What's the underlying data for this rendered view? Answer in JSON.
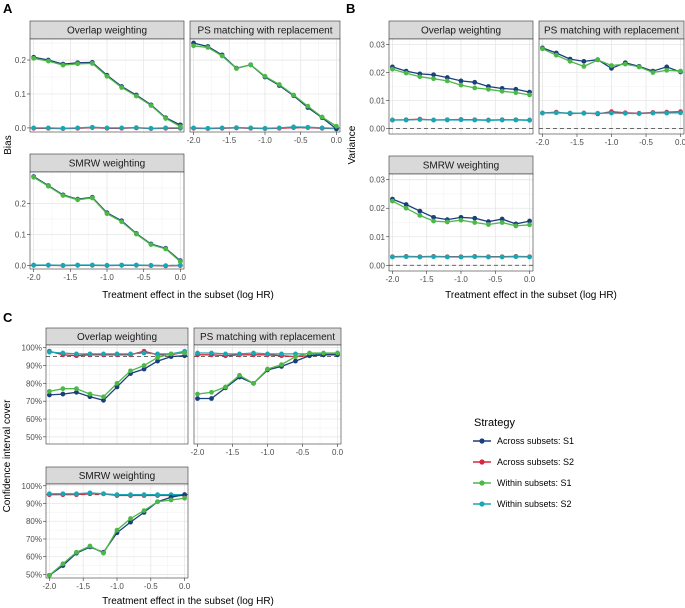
{
  "figure": {
    "panel_letters": [
      "A",
      "B",
      "C"
    ],
    "xlabel": "Treatment effect in the subset (log HR)",
    "legend": {
      "title": "Strategy",
      "entries": [
        {
          "name": "Across subsets: S1",
          "color": "#1a3f7a"
        },
        {
          "name": "Across subsets: S2",
          "color": "#d7263d"
        },
        {
          "name": "Within subsets: S1",
          "color": "#4cb848"
        },
        {
          "name": "Within subsets: S2",
          "color": "#1aa7b3"
        }
      ]
    }
  },
  "chart_data": [
    {
      "type": "line",
      "group": "A",
      "title": "Overlap weighting",
      "ylabel": "Bias",
      "x": [
        -2.0,
        -1.8,
        -1.6,
        -1.4,
        -1.2,
        -1.0,
        -0.8,
        -0.6,
        -0.4,
        -0.2,
        0.0
      ],
      "xlim": [
        -2.05,
        0.05
      ],
      "ylim": [
        -0.012,
        0.262
      ],
      "yticks": [
        0.0,
        0.1,
        0.2
      ],
      "ytick_labels": [
        "0.0",
        "0.1",
        "0.2"
      ],
      "xticks": [],
      "xtick_labels": [],
      "refline": 0,
      "series": [
        {
          "name": "Across subsets: S1",
          "values": [
            0.208,
            0.2,
            0.188,
            0.192,
            0.193,
            0.155,
            0.122,
            0.097,
            0.068,
            0.03,
            0.009
          ]
        },
        {
          "name": "Across subsets: S2",
          "values": [
            -0.001,
            -0.001,
            -0.002,
            -0.001,
            0.001,
            -0.001,
            -0.001,
            0.0,
            -0.002,
            -0.001,
            -0.001
          ]
        },
        {
          "name": "Within subsets: S1",
          "values": [
            0.205,
            0.197,
            0.185,
            0.189,
            0.19,
            0.152,
            0.119,
            0.094,
            0.066,
            0.028,
            0.004
          ]
        },
        {
          "name": "Within subsets: S2",
          "values": [
            0.0,
            0.0,
            -0.001,
            0.0,
            0.002,
            0.0,
            0.0,
            0.001,
            -0.001,
            0.0,
            0.0
          ]
        }
      ]
    },
    {
      "type": "line",
      "group": "A",
      "title": "PS matching with replacement",
      "ylabel": "",
      "x": [
        -2.0,
        -1.8,
        -1.6,
        -1.4,
        -1.2,
        -1.0,
        -0.8,
        -0.6,
        -0.4,
        -0.2,
        0.0
      ],
      "xlim": [
        -2.05,
        0.05
      ],
      "ylim": [
        -0.012,
        0.262
      ],
      "yticks": [],
      "ytick_labels": [],
      "xticks": [
        -2.0,
        -1.5,
        -1.0,
        -0.5,
        0.0
      ],
      "xtick_labels": [
        "-2.0",
        "-1.5",
        "-1.0",
        "-0.5",
        "0.0"
      ],
      "refline": 0,
      "series": [
        {
          "name": "Across subsets: S1",
          "values": [
            0.25,
            0.24,
            0.215,
            0.176,
            0.186,
            0.15,
            0.125,
            0.095,
            0.06,
            0.03,
            -0.003
          ]
        },
        {
          "name": "Across subsets: S2",
          "values": [
            -0.001,
            -0.002,
            -0.001,
            0.0,
            -0.001,
            -0.002,
            -0.001,
            0.001,
            0.001,
            -0.001,
            -0.002
          ]
        },
        {
          "name": "Within subsets: S1",
          "values": [
            0.242,
            0.237,
            0.212,
            0.175,
            0.186,
            0.152,
            0.128,
            0.097,
            0.064,
            0.032,
            0.005
          ]
        },
        {
          "name": "Within subsets: S2",
          "values": [
            0.0,
            -0.001,
            0.0,
            0.001,
            0.0,
            -0.001,
            0.0,
            0.003,
            0.002,
            0.0,
            -0.001
          ]
        }
      ]
    },
    {
      "type": "line",
      "group": "A",
      "title": "SMRW weighting",
      "ylabel": "Bias",
      "x": [
        -2.0,
        -1.8,
        -1.6,
        -1.4,
        -1.2,
        -1.0,
        -0.8,
        -0.6,
        -0.4,
        -0.2,
        0.0
      ],
      "xlim": [
        -2.05,
        0.05
      ],
      "ylim": [
        -0.012,
        0.302
      ],
      "yticks": [
        0.0,
        0.1,
        0.2
      ],
      "ytick_labels": [
        "0.0",
        "0.1",
        "0.2"
      ],
      "xticks": [
        -2.0,
        -1.5,
        -1.0,
        -0.5,
        0.0
      ],
      "xtick_labels": [
        "-2.0",
        "-1.5",
        "-1.0",
        "-0.5",
        "0.0"
      ],
      "refline": 0,
      "series": [
        {
          "name": "Across subsets: S1",
          "values": [
            0.287,
            0.258,
            0.228,
            0.214,
            0.22,
            0.17,
            0.144,
            0.103,
            0.069,
            0.055,
            0.015
          ]
        },
        {
          "name": "Across subsets: S2",
          "values": [
            0.0,
            0.0,
            -0.001,
            0.0,
            0.0,
            -0.001,
            0.0,
            0.0,
            -0.001,
            -0.002,
            -0.001
          ]
        },
        {
          "name": "Within subsets: S1",
          "values": [
            0.285,
            0.256,
            0.226,
            0.212,
            0.218,
            0.167,
            0.141,
            0.101,
            0.067,
            0.053,
            0.012
          ]
        },
        {
          "name": "Within subsets: S2",
          "values": [
            0.001,
            0.001,
            0.0,
            0.001,
            0.001,
            0.0,
            0.001,
            0.001,
            0.0,
            -0.001,
            0.0
          ]
        }
      ]
    },
    {
      "type": "line",
      "group": "B",
      "title": "Overlap weighting",
      "ylabel": "Variance",
      "x": [
        -2.0,
        -1.8,
        -1.6,
        -1.4,
        -1.2,
        -1.0,
        -0.8,
        -0.6,
        -0.4,
        -0.2,
        0.0
      ],
      "xlim": [
        -2.05,
        0.05
      ],
      "ylim": [
        -0.002,
        0.032
      ],
      "yticks": [
        0.0,
        0.01,
        0.02,
        0.03
      ],
      "ytick_labels": [
        "0.00",
        "0.01",
        "0.02",
        "0.03"
      ],
      "xticks": [],
      "xtick_labels": [],
      "refline": 0,
      "series": [
        {
          "name": "Across subsets: S1",
          "values": [
            0.022,
            0.0205,
            0.0195,
            0.0192,
            0.0182,
            0.017,
            0.0165,
            0.015,
            0.0143,
            0.014,
            0.013
          ]
        },
        {
          "name": "Across subsets: S2",
          "values": [
            0.003,
            0.0031,
            0.0033,
            0.003,
            0.0031,
            0.0032,
            0.0031,
            0.003,
            0.0031,
            0.0031,
            0.003
          ]
        },
        {
          "name": "Within subsets: S1",
          "values": [
            0.0212,
            0.0198,
            0.0185,
            0.0178,
            0.017,
            0.0155,
            0.0145,
            0.014,
            0.0133,
            0.0128,
            0.012
          ]
        },
        {
          "name": "Within subsets: S2",
          "values": [
            0.003,
            0.003,
            0.0032,
            0.003,
            0.003,
            0.0031,
            0.003,
            0.0029,
            0.003,
            0.003,
            0.0029
          ]
        }
      ]
    },
    {
      "type": "line",
      "group": "B",
      "title": "PS matching with replacement",
      "ylabel": "",
      "x": [
        -2.0,
        -1.8,
        -1.6,
        -1.4,
        -1.2,
        -1.0,
        -0.8,
        -0.6,
        -0.4,
        -0.2,
        0.0
      ],
      "xlim": [
        -2.05,
        0.05
      ],
      "ylim": [
        -0.002,
        0.032
      ],
      "yticks": [],
      "ytick_labels": [],
      "xticks": [
        -2.0,
        -1.5,
        -1.0,
        -0.5,
        0.0
      ],
      "xtick_labels": [
        "-2.0",
        "-1.5",
        "-1.0",
        "-0.5",
        "0.0"
      ],
      "refline": 0,
      "series": [
        {
          "name": "Across subsets: S1",
          "values": [
            0.0288,
            0.027,
            0.0248,
            0.024,
            0.0246,
            0.0215,
            0.0235,
            0.0222,
            0.0205,
            0.022,
            0.0202
          ]
        },
        {
          "name": "Across subsets: S2",
          "values": [
            0.0055,
            0.0058,
            0.0053,
            0.0055,
            0.0052,
            0.006,
            0.0056,
            0.0054,
            0.0057,
            0.0058,
            0.006
          ]
        },
        {
          "name": "Within subsets: S1",
          "values": [
            0.0285,
            0.0262,
            0.024,
            0.0222,
            0.0245,
            0.0225,
            0.023,
            0.022,
            0.02,
            0.0208,
            0.0205
          ]
        },
        {
          "name": "Within subsets: S2",
          "values": [
            0.0055,
            0.0056,
            0.0055,
            0.0054,
            0.0054,
            0.0055,
            0.0054,
            0.0053,
            0.0055,
            0.0055,
            0.0056
          ]
        }
      ]
    },
    {
      "type": "line",
      "group": "B",
      "title": "SMRW weighting",
      "ylabel": "Variance",
      "x": [
        -2.0,
        -1.8,
        -1.6,
        -1.4,
        -1.2,
        -1.0,
        -0.8,
        -0.6,
        -0.4,
        -0.2,
        0.0
      ],
      "xlim": [
        -2.05,
        0.05
      ],
      "ylim": [
        -0.002,
        0.032
      ],
      "yticks": [
        0.0,
        0.01,
        0.02,
        0.03
      ],
      "ytick_labels": [
        "0.00",
        "0.01",
        "0.02",
        "0.03"
      ],
      "xticks": [
        -2.0,
        -1.5,
        -1.0,
        -0.5,
        0.0
      ],
      "xtick_labels": [
        "-2.0",
        "-1.5",
        "-1.0",
        "-0.5",
        "0.0"
      ],
      "refline": 0,
      "series": [
        {
          "name": "Across subsets: S1",
          "values": [
            0.0232,
            0.0213,
            0.019,
            0.0168,
            0.016,
            0.0168,
            0.0165,
            0.0153,
            0.0162,
            0.0145,
            0.0155
          ]
        },
        {
          "name": "Across subsets: S2",
          "values": [
            0.003,
            0.0031,
            0.003,
            0.0031,
            0.003,
            0.003,
            0.0031,
            0.003,
            0.003,
            0.0031,
            0.003
          ]
        },
        {
          "name": "Within subsets: S1",
          "values": [
            0.0225,
            0.02,
            0.0175,
            0.0155,
            0.0152,
            0.0158,
            0.015,
            0.0143,
            0.015,
            0.0138,
            0.0142
          ]
        },
        {
          "name": "Within subsets: S2",
          "values": [
            0.0029,
            0.003,
            0.0029,
            0.003,
            0.0029,
            0.0029,
            0.003,
            0.0029,
            0.0029,
            0.003,
            0.0029
          ]
        }
      ]
    },
    {
      "type": "line",
      "group": "C",
      "title": "Overlap weighting",
      "ylabel": "Confidence interval cover",
      "x": [
        -2.0,
        -1.8,
        -1.6,
        -1.4,
        -1.2,
        -1.0,
        -0.8,
        -0.6,
        -0.4,
        -0.2,
        0.0
      ],
      "xlim": [
        -2.05,
        0.05
      ],
      "ylim": [
        46,
        101.5
      ],
      "yticks": [
        50,
        60,
        70,
        80,
        90,
        100
      ],
      "ytick_labels": [
        "50%",
        "60%",
        "70%",
        "80%",
        "90%",
        "100%"
      ],
      "xticks": [],
      "xtick_labels": [],
      "refline": 95,
      "series": [
        {
          "name": "Across subsets: S1",
          "values": [
            73.5,
            74.0,
            75.0,
            72.5,
            70.5,
            78.0,
            85.5,
            88.0,
            92.5,
            95.0,
            95.5
          ]
        },
        {
          "name": "Across subsets: S2",
          "values": [
            98.0,
            96.0,
            95.5,
            96.0,
            96.0,
            96.0,
            96.0,
            98.0,
            96.0,
            96.0,
            97.5
          ]
        },
        {
          "name": "Within subsets: S1",
          "values": [
            75.5,
            77.0,
            77.0,
            74.0,
            72.5,
            80.0,
            87.0,
            90.0,
            94.5,
            96.5,
            97.0
          ]
        },
        {
          "name": "Within subsets: S2",
          "values": [
            97.5,
            97.0,
            96.5,
            96.5,
            96.5,
            96.5,
            96.5,
            97.0,
            96.5,
            96.5,
            98.0
          ]
        }
      ]
    },
    {
      "type": "line",
      "group": "C",
      "title": "PS matching with replacement",
      "ylabel": "",
      "x": [
        -2.0,
        -1.8,
        -1.6,
        -1.4,
        -1.2,
        -1.0,
        -0.8,
        -0.6,
        -0.4,
        -0.2,
        0.0
      ],
      "xlim": [
        -2.05,
        0.05
      ],
      "ylim": [
        46,
        101.5
      ],
      "yticks": [],
      "ytick_labels": [],
      "xticks": [
        -2.0,
        -1.5,
        -1.0,
        -0.5,
        0.0
      ],
      "xtick_labels": [
        "-2.0",
        "-1.5",
        "-1.0",
        "-0.5",
        "0.0"
      ],
      "refline": 95,
      "series": [
        {
          "name": "Across subsets: S1",
          "values": [
            71.5,
            71.5,
            77.5,
            83.5,
            80.0,
            87.5,
            89.5,
            92.5,
            95.5,
            96.0,
            96.0
          ]
        },
        {
          "name": "Across subsets: S2",
          "values": [
            96.0,
            96.0,
            95.5,
            96.0,
            96.0,
            96.0,
            95.5,
            95.0,
            95.5,
            96.0,
            96.5
          ]
        },
        {
          "name": "Within subsets: S1",
          "values": [
            74.0,
            75.0,
            78.0,
            84.5,
            80.0,
            88.0,
            90.5,
            95.0,
            97.0,
            97.0,
            97.0
          ]
        },
        {
          "name": "Within subsets: S2",
          "values": [
            97.0,
            97.0,
            96.5,
            96.5,
            97.0,
            96.5,
            96.5,
            96.5,
            96.5,
            96.5,
            97.0
          ]
        }
      ]
    },
    {
      "type": "line",
      "group": "C",
      "title": "SMRW weighting",
      "ylabel": "Confidence interval cover",
      "x": [
        -2.0,
        -1.8,
        -1.6,
        -1.4,
        -1.2,
        -1.0,
        -0.8,
        -0.6,
        -0.4,
        -0.2,
        0.0
      ],
      "xlim": [
        -2.05,
        0.05
      ],
      "ylim": [
        48,
        101
      ],
      "yticks": [
        50,
        60,
        70,
        80,
        90,
        100
      ],
      "ytick_labels": [
        "50%",
        "60%",
        "70%",
        "80%",
        "90%",
        "100%"
      ],
      "xticks": [
        -2.0,
        -1.5,
        -1.0,
        -0.5,
        0.0
      ],
      "xtick_labels": [
        "-2.0",
        "-1.5",
        "-1.0",
        "-0.5",
        "0.0"
      ],
      "refline": 95,
      "series": [
        {
          "name": "Across subsets: S1",
          "values": [
            49.5,
            55.0,
            62.0,
            65.5,
            62.5,
            73.5,
            79.5,
            85.0,
            91.0,
            93.5,
            95.0
          ]
        },
        {
          "name": "Across subsets: S2",
          "values": [
            95.0,
            95.0,
            95.0,
            95.5,
            95.5,
            94.5,
            94.5,
            94.5,
            94.5,
            94.5,
            94.5
          ]
        },
        {
          "name": "Within subsets: S1",
          "values": [
            49.5,
            56.0,
            62.5,
            66.0,
            62.0,
            75.0,
            81.5,
            86.0,
            91.0,
            92.0,
            93.0
          ]
        },
        {
          "name": "Within subsets: S2",
          "values": [
            95.5,
            95.5,
            95.5,
            96.0,
            95.5,
            95.0,
            95.0,
            95.0,
            95.0,
            95.0,
            95.0
          ]
        }
      ]
    }
  ]
}
